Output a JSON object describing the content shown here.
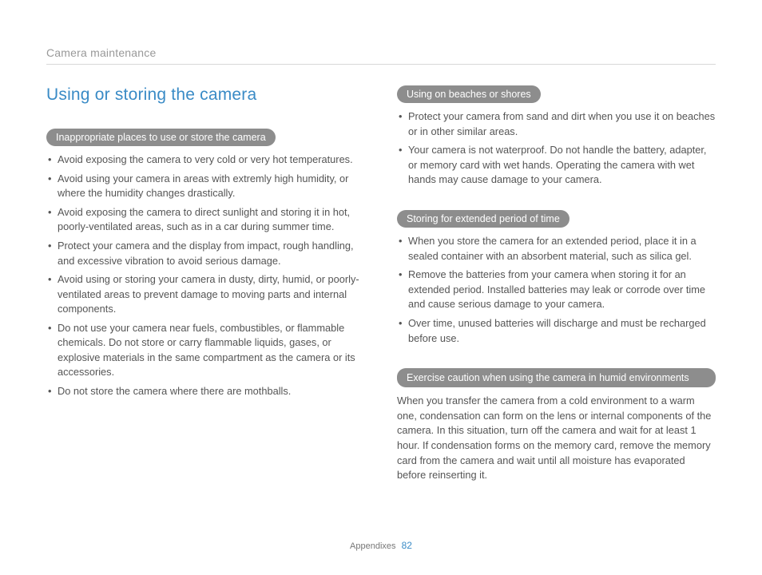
{
  "header": {
    "section": "Camera maintenance"
  },
  "title": "Using or storing the camera",
  "left": {
    "pill1": "Inappropriate places to use or store the camera",
    "list1": [
      "Avoid exposing the camera to very cold or very hot temperatures.",
      "Avoid using your camera in areas with extremly high humidity, or where the humidity changes drastically.",
      "Avoid exposing the camera to direct sunlight and storing it in hot, poorly-ventilated areas, such as in a car during summer time.",
      "Protect your camera and the display from impact, rough handling, and excessive vibration to avoid serious damage.",
      "Avoid using or storing your camera in dusty, dirty, humid, or poorly-ventilated areas to prevent damage to moving parts and internal components.",
      "Do not use your camera near fuels, combustibles, or flammable chemicals. Do not store or carry flammable liquids, gases, or explosive materials in the same compartment as the camera or its accessories.",
      "Do not store the camera where there are mothballs."
    ]
  },
  "right": {
    "pill1": "Using on beaches or shores",
    "list1": [
      "Protect your camera from sand and dirt when you use it on beaches or in other similar areas.",
      "Your camera is not waterproof. Do not handle the battery, adapter, or memory card with wet hands. Operating the camera with wet hands may cause damage to your camera."
    ],
    "pill2": "Storing for extended period of time",
    "list2": [
      "When you store the camera for an extended period, place it in a sealed container with an absorbent material, such as silica gel.",
      "Remove the batteries from your camera when storing it for an extended period. Installed batteries may leak or corrode over time and cause serious damage to your camera.",
      "Over time, unused batteries will discharge and must be recharged before use."
    ],
    "pill3": "Exercise caution when using the camera in humid environments",
    "para3": "When you transfer the camera from a cold environment to a warm one, condensation can form on the lens or internal components of the camera. In this situation, turn off the camera and wait for at least 1 hour. If condensation forms on the memory card, remove the memory card from the camera and wait until all moisture has evaporated before reinserting it."
  },
  "footer": {
    "label": "Appendixes",
    "page": "82"
  }
}
